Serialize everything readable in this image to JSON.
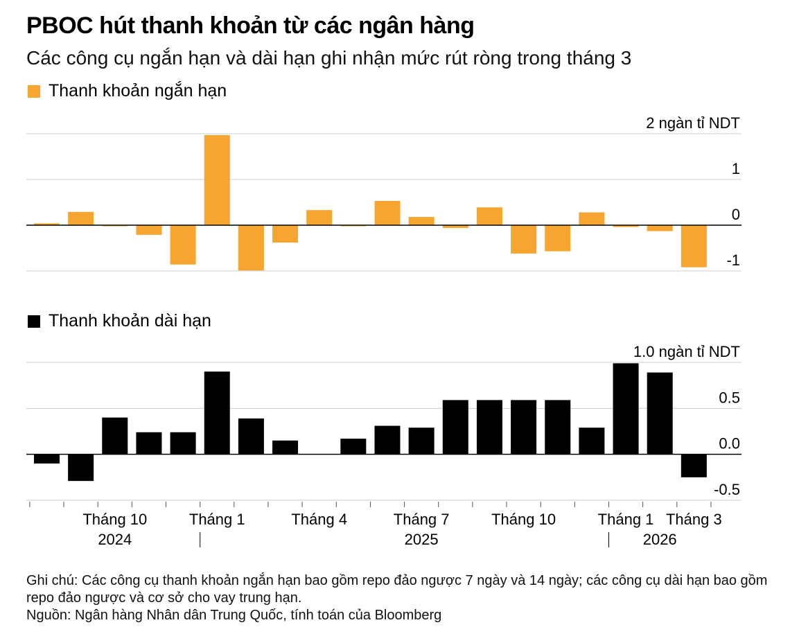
{
  "title": "PBOC hút thanh khoản từ các ngân hàng",
  "subtitle": "Các công cụ ngắn hạn và dài hạn ghi nhận mức rút ròng trong tháng 3",
  "colors": {
    "short": "#F7A531",
    "long": "#000000",
    "grid": "#cccccc",
    "zero": "#000000"
  },
  "chart_data": [
    {
      "type": "bar",
      "title": "Thanh khoản ngắn hạn",
      "legend": "Thanh khoản ngắn hạn",
      "unit_label": "2 ngàn tỉ NDT",
      "ylim": [
        -1,
        2
      ],
      "yticks": [
        2,
        1,
        0,
        -1
      ],
      "ytick_labels": [
        "2 ngàn tỉ NDT",
        "1",
        "0",
        "-1"
      ],
      "categories": [
        "2024-08",
        "2024-09",
        "2024-10",
        "2024-11",
        "2024-12",
        "2025-01",
        "2025-02",
        "2025-03",
        "2025-04",
        "2025-05",
        "2025-06",
        "2025-07",
        "2025-08",
        "2025-09",
        "2025-10",
        "2025-11",
        "2025-12",
        "2026-01",
        "2026-02",
        "2026-03"
      ],
      "values": [
        0.04,
        0.29,
        -0.02,
        -0.21,
        -0.86,
        1.97,
        -0.99,
        -0.38,
        0.33,
        -0.02,
        0.53,
        0.18,
        -0.06,
        0.39,
        -0.62,
        -0.57,
        0.28,
        -0.04,
        -0.13,
        -0.92
      ]
    },
    {
      "type": "bar",
      "title": "Thanh khoản dài hạn",
      "legend": "Thanh khoản dài hạn",
      "unit_label": "1.0 ngàn tỉ NDT",
      "ylim": [
        -0.5,
        1.0
      ],
      "yticks": [
        1.0,
        0.5,
        0.0,
        -0.5
      ],
      "ytick_labels": [
        "1.0 ngàn tỉ NDT",
        "0.5",
        "0.0",
        "-0.5"
      ],
      "categories": [
        "2024-08",
        "2024-09",
        "2024-10",
        "2024-11",
        "2024-12",
        "2025-01",
        "2025-02",
        "2025-03",
        "2025-04",
        "2025-05",
        "2025-06",
        "2025-07",
        "2025-08",
        "2025-09",
        "2025-10",
        "2025-11",
        "2025-12",
        "2026-01",
        "2026-02",
        "2026-03"
      ],
      "values": [
        -0.1,
        -0.29,
        0.4,
        0.24,
        0.24,
        0.9,
        0.39,
        0.15,
        0.0,
        0.17,
        0.31,
        0.29,
        0.59,
        0.59,
        0.59,
        0.59,
        0.29,
        0.99,
        0.89,
        -0.25
      ]
    }
  ],
  "x_axis": {
    "month_labels": [
      {
        "index": 2,
        "label": "Tháng 10"
      },
      {
        "index": 5,
        "label": "Tháng 1"
      },
      {
        "index": 8,
        "label": "Tháng 4"
      },
      {
        "index": 11,
        "label": "Tháng 7"
      },
      {
        "index": 14,
        "label": "Tháng 10"
      },
      {
        "index": 17,
        "label": "Tháng 1"
      },
      {
        "index": 19,
        "label": "Tháng 3"
      }
    ],
    "year_labels": [
      {
        "index": 2,
        "label": "2024"
      },
      {
        "index": 11,
        "label": "2025"
      },
      {
        "index": 18,
        "label": "2026"
      }
    ],
    "year_dividers": [
      5,
      17
    ]
  },
  "notes": {
    "note": "Ghi chú: Các công cụ thanh khoản ngắn hạn bao gồm repo đảo ngược 7 ngày và 14 ngày; các công cụ dài hạn bao gồm repo đảo ngược và cơ sở cho vay trung hạn.",
    "source": "Nguồn: Ngân hàng Nhân dân Trung Quốc, tính toán của Bloomberg"
  }
}
